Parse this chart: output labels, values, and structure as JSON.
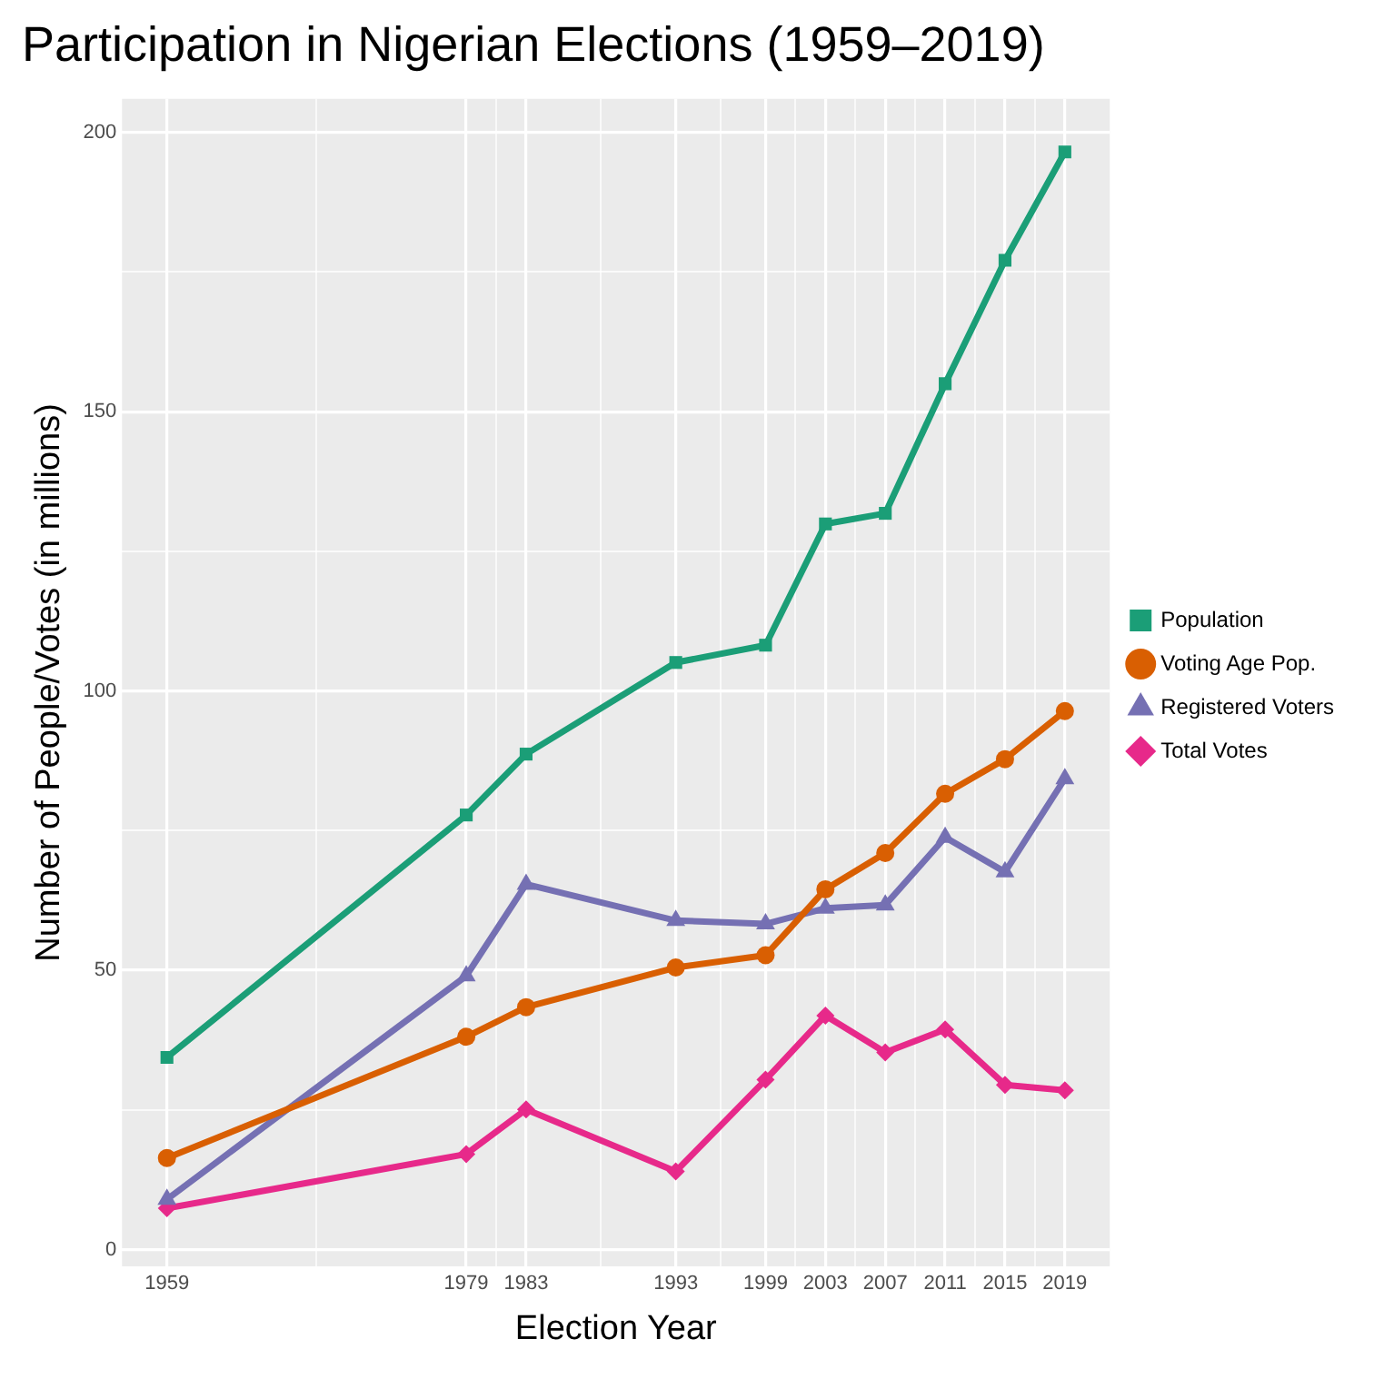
{
  "chart_data": {
    "type": "line",
    "title": "Participation in Nigerian Elections (1959–2019)",
    "xlabel": "Election Year",
    "ylabel": "Number of People/Votes (in millions)",
    "x": [
      1959,
      1979,
      1983,
      1993,
      1999,
      2003,
      2007,
      2011,
      2015,
      2019
    ],
    "series": [
      {
        "name": "Population",
        "color": "#1b9e77",
        "marker": "square",
        "values": [
          34.4,
          77.8,
          88.7,
          105.1,
          108.2,
          129.9,
          131.8,
          155.0,
          177.1,
          196.5
        ]
      },
      {
        "name": "Voting Age Pop.",
        "color": "#d95f02",
        "marker": "circle",
        "values": [
          16.4,
          38.1,
          43.4,
          50.5,
          52.7,
          64.5,
          71.0,
          81.6,
          87.8,
          96.4
        ]
      },
      {
        "name": "Registered Voters",
        "color": "#7570b3",
        "marker": "triangle",
        "values": [
          9.0,
          49.0,
          65.4,
          58.9,
          58.3,
          61.1,
          61.7,
          73.8,
          67.6,
          84.3
        ]
      },
      {
        "name": "Total Votes",
        "color": "#e7298a",
        "marker": "diamond",
        "values": [
          7.4,
          17.1,
          25.1,
          14.0,
          30.4,
          41.9,
          35.3,
          39.4,
          29.5,
          28.5
        ]
      }
    ],
    "xlim": [
      1956,
      2022
    ],
    "ylim": [
      -3,
      206
    ],
    "xticks": [
      1959,
      {
        "value": 1969,
        "label": null
      },
      1979,
      {
        "value": 1981,
        "label": null
      },
      1983,
      {
        "value": 1988,
        "label": null
      },
      1993,
      {
        "value": 1996,
        "label": null
      },
      1999,
      {
        "value": 2001,
        "label": null
      },
      2003,
      {
        "value": 2005,
        "label": null
      },
      2007,
      {
        "value": 2009,
        "label": null
      },
      2011,
      {
        "value": 2013,
        "label": null
      },
      2015,
      {
        "value": 2017,
        "label": null
      },
      2019
    ],
    "yticks": [
      0,
      {
        "value": 25,
        "label": null
      },
      50,
      {
        "value": 75,
        "label": null
      },
      100,
      {
        "value": 125,
        "label": null
      },
      150,
      {
        "value": 175,
        "label": null
      },
      200
    ],
    "grid": true,
    "legend": "right",
    "line_style": "solid"
  }
}
